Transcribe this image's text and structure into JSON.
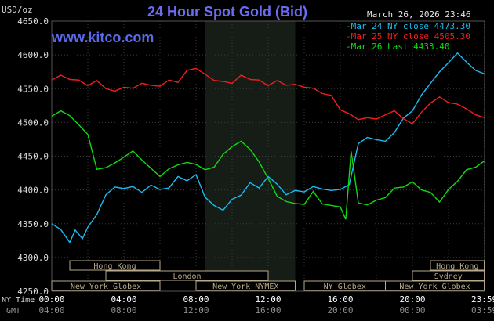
{
  "header": {
    "title": "24 Hour Spot Gold (Bid)",
    "site": "www.kitco.com",
    "unit": "USD/oz",
    "datetime": "March 26, 2026 23:46"
  },
  "legend": [
    {
      "label": "Mar 24 NY close 4473.30",
      "color": "#19bcf1"
    },
    {
      "label": "Mar 25 NY close 4505.30",
      "color": "#f31d1d"
    },
    {
      "label": "Mar 26 Last 4433.40",
      "color": "#0fdc0f"
    }
  ],
  "sessions": [
    {
      "label": "Hong Kong",
      "start": 1.0,
      "end": 6.0
    },
    {
      "label": "London",
      "start": 3.0,
      "end": 12.0
    },
    {
      "label": "New York Globex",
      "start": 0.0,
      "end": 6.0
    },
    {
      "label": "New York NYMEX",
      "start": 8.0,
      "end": 13.5
    },
    {
      "label": "NY Globex",
      "start": 14.0,
      "end": 18.5
    },
    {
      "label": "Hong Kong",
      "start": 21.0,
      "end": 24.0
    },
    {
      "label": "Sydney",
      "start": 20.0,
      "end": 24.0
    },
    {
      "label": "New York Globex",
      "start": 18.5,
      "end": 24.0
    }
  ],
  "time_rows": {
    "top_label": "NY Time",
    "bottom_label": "GMT",
    "ny_ticks": [
      "00:00",
      "04:00",
      "08:00",
      "12:00",
      "16:00",
      "20:00",
      "23:59"
    ],
    "gmt_ticks": [
      "04:00",
      "08:00",
      "12:00",
      "16:00",
      "20:00",
      "00:00",
      "03:59"
    ]
  },
  "chart_data": {
    "type": "line",
    "ylim": [
      4250,
      4650
    ],
    "yticks": [
      "4250.0",
      "4300.0",
      "4350.0",
      "4400.0",
      "4450.0",
      "4500.0",
      "4550.0",
      "4600.0",
      "4650.0"
    ],
    "x_unit": "hours",
    "xlim": [
      0,
      24
    ],
    "shaded_region": [
      8.5,
      13.5
    ],
    "grid": true,
    "series": [
      {
        "name": "Mar 24 NY close 4473.30",
        "color": "#19bcf1",
        "x": [
          0,
          0.5,
          1,
          1.3,
          1.7,
          2,
          2.5,
          3,
          3.5,
          4,
          4.5,
          5,
          5.5,
          6,
          6.5,
          7,
          7.5,
          8,
          8.5,
          9,
          9.5,
          10,
          10.5,
          11,
          11.5,
          12,
          12.5,
          13,
          13.5,
          14,
          14.5,
          15,
          15.5,
          16,
          16.5,
          16.8,
          17,
          17.5,
          18,
          18.5,
          19,
          19.5,
          20,
          20.5,
          21,
          21.5,
          22,
          22.5,
          23,
          23.5,
          23.98
        ],
        "y": [
          4350,
          4340,
          4325,
          4340,
          4330,
          4345,
          4365,
          4390,
          4405,
          4400,
          4405,
          4395,
          4410,
          4400,
          4405,
          4420,
          4415,
          4420,
          4390,
          4375,
          4370,
          4385,
          4395,
          4410,
          4405,
          4420,
          4410,
          4390,
          4400,
          4395,
          4405,
          4400,
          4402,
          4400,
          4410,
          4445,
          4470,
          4475,
          4475,
          4470,
          4485,
          4505,
          4520,
          4540,
          4560,
          4575,
          4590,
          4600,
          4590,
          4575,
          4572
        ]
      },
      {
        "name": "Mar 25 NY close 4505.30",
        "color": "#f31d1d",
        "x": [
          0,
          0.5,
          1,
          1.5,
          2,
          2.5,
          3,
          3.5,
          4,
          4.5,
          5,
          5.5,
          6,
          6.5,
          7,
          7.5,
          8,
          8.5,
          9,
          9.5,
          10,
          10.5,
          11,
          11.5,
          12,
          12.5,
          13,
          13.5,
          14,
          14.5,
          15,
          15.5,
          16,
          16.5,
          17,
          17.5,
          18,
          18.5,
          19,
          19.5,
          20,
          20.5,
          21,
          21.5,
          22,
          22.5,
          23,
          23.5,
          23.98
        ],
        "y": [
          4565,
          4570,
          4565,
          4560,
          4555,
          4560,
          4550,
          4545,
          4555,
          4550,
          4560,
          4555,
          4555,
          4560,
          4560,
          4575,
          4580,
          4570,
          4565,
          4560,
          4560,
          4570,
          4565,
          4560,
          4555,
          4560,
          4555,
          4555,
          4555,
          4550,
          4545,
          4540,
          4520,
          4510,
          4505,
          4505,
          4505,
          4510,
          4520,
          4505,
          4500,
          4515,
          4530,
          4535,
          4530,
          4525,
          4520,
          4510,
          4510
        ]
      },
      {
        "name": "Mar 26 Last 4433.40",
        "color": "#0fdc0f",
        "x": [
          0,
          0.5,
          1,
          1.5,
          2,
          2.5,
          3,
          3.5,
          4,
          4.5,
          5,
          5.5,
          6,
          6.5,
          7,
          7.5,
          8,
          8.5,
          9,
          9.5,
          10,
          10.5,
          11,
          11.5,
          12,
          12.5,
          13,
          13.5,
          14,
          14.5,
          15,
          15.5,
          16,
          16.3,
          16.6,
          17,
          17.5,
          18,
          18.5,
          19,
          19.5,
          20,
          20.5,
          21,
          21.5,
          22,
          22.5,
          23,
          23.5,
          23.98
        ],
        "y": [
          4510,
          4515,
          4510,
          4495,
          4485,
          4430,
          4435,
          4440,
          4450,
          4455,
          4445,
          4430,
          4420,
          4430,
          4440,
          4440,
          4440,
          4430,
          4435,
          4450,
          4465,
          4470,
          4460,
          4440,
          4420,
          4390,
          4385,
          4380,
          4380,
          4395,
          4380,
          4375,
          4375,
          4355,
          4460,
          4380,
          4380,
          4385,
          4390,
          4400,
          4405,
          4410,
          4400,
          4395,
          4385,
          4400,
          4415,
          4430,
          4435,
          4440
        ]
      }
    ]
  }
}
